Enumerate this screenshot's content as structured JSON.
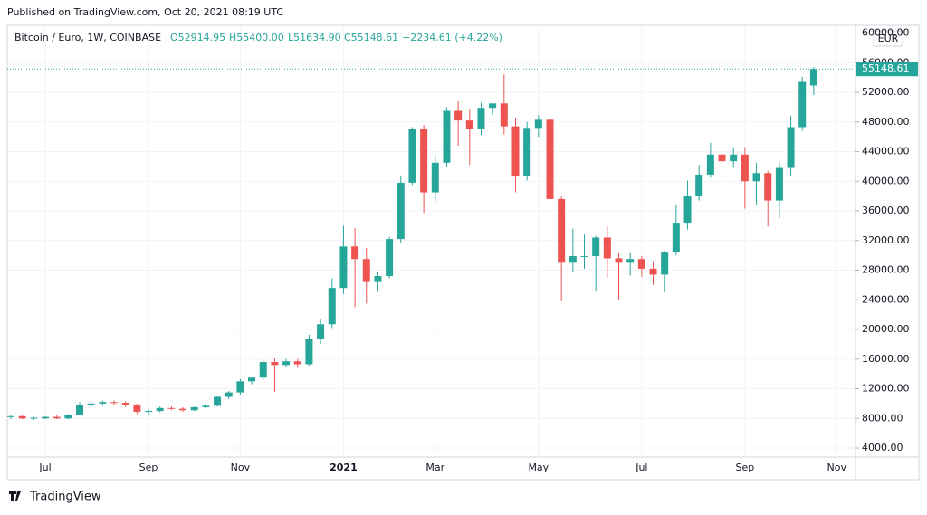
{
  "header": {
    "published": "Published on TradingView.com, Oct 20, 2021 08:19 UTC"
  },
  "chart_data": {
    "type": "candlestick",
    "legend": {
      "symbol": "Bitcoin / Euro, 1W, COINBASE",
      "open": "O52914.95",
      "high": "H55400.00",
      "low": "L51634.90",
      "close": "C55148.61",
      "change": "+2234.61 (+4.22%)"
    },
    "currency": "EUR",
    "up_color": "#26a69a",
    "down_color": "#ef5350",
    "grid": true,
    "categories": [
      null,
      null,
      null,
      "Jul",
      null,
      null,
      null,
      null,
      null,
      null,
      null,
      null,
      "Sep",
      null,
      null,
      null,
      null,
      null,
      null,
      null,
      "Nov",
      null,
      null,
      null,
      null,
      null,
      null,
      null,
      null,
      "2021",
      null,
      null,
      null,
      null,
      null,
      null,
      null,
      "Mar",
      null,
      null,
      null,
      null,
      null,
      null,
      null,
      null,
      "May",
      null,
      null,
      null,
      null,
      null,
      null,
      null,
      null,
      "Jul",
      null,
      null,
      null,
      null,
      null,
      null,
      null,
      null,
      "Sep",
      null,
      null,
      null,
      null,
      null,
      null,
      null,
      "Nov"
    ],
    "open": [
      8200,
      8300,
      8000,
      8000,
      8200,
      8000,
      8500,
      9800,
      10000,
      10200,
      10100,
      9800,
      8900,
      9000,
      9400,
      9300,
      9100,
      9500,
      9700,
      10900,
      11500,
      13000,
      13500,
      15600,
      15200,
      15700,
      15300,
      18700,
      20700,
      25600,
      31200,
      29500,
      26400,
      27200,
      32200,
      39800,
      47100,
      38500,
      42500,
      49500,
      48200,
      47000,
      49900,
      50500,
      47400,
      40700,
      47200,
      48300,
      37600,
      29000,
      29900,
      29900,
      32400,
      29600,
      29000,
      29500,
      28200,
      27400,
      30500,
      34400,
      38000,
      40900,
      43600,
      42700,
      43600,
      40000,
      41100,
      37400,
      41800,
      47300,
      52914.95,
      null,
      null
    ],
    "high": [
      8500,
      8500,
      8200,
      8300,
      8400,
      8600,
      10200,
      10300,
      10400,
      10400,
      10300,
      10000,
      9200,
      9600,
      9600,
      9500,
      9600,
      9900,
      11100,
      11700,
      13300,
      13600,
      15900,
      16200,
      16000,
      16000,
      19300,
      21400,
      26900,
      34000,
      33700,
      31000,
      27800,
      32500,
      40800,
      47300,
      47600,
      43500,
      50000,
      50800,
      49800,
      50600,
      50500,
      54400,
      48600,
      48000,
      48900,
      49200,
      38000,
      33600,
      32800,
      32600,
      33900,
      30300,
      30400,
      29900,
      29200,
      30600,
      36800,
      40100,
      42200,
      45200,
      45800,
      44600,
      44600,
      42500,
      41400,
      42500,
      48800,
      54100,
      55400,
      null,
      null
    ],
    "low": [
      7900,
      7900,
      7800,
      7900,
      7900,
      7900,
      8400,
      9500,
      9700,
      9800,
      9500,
      8600,
      8500,
      8800,
      9100,
      8900,
      9000,
      9400,
      9600,
      10600,
      11200,
      12600,
      13200,
      11600,
      14900,
      14800,
      15100,
      18000,
      20200,
      24800,
      23000,
      23500,
      25100,
      26900,
      31700,
      39500,
      35700,
      37300,
      42000,
      44800,
      42200,
      46200,
      49000,
      46300,
      38500,
      40100,
      46000,
      35700,
      23800,
      27700,
      28200,
      25200,
      27000,
      24000,
      27300,
      27100,
      26000,
      25000,
      30000,
      33500,
      37400,
      40500,
      40400,
      41800,
      36300,
      36800,
      33900,
      35000,
      40700,
      46800,
      51634.9,
      null,
      null
    ],
    "close": [
      8300,
      8000,
      8100,
      8200,
      8000,
      8500,
      9800,
      10000,
      10200,
      10100,
      9800,
      8900,
      9000,
      9400,
      9300,
      9100,
      9500,
      9700,
      10900,
      11500,
      13000,
      13500,
      15600,
      15200,
      15700,
      15300,
      18700,
      20700,
      25600,
      31200,
      29500,
      26400,
      27200,
      32200,
      39800,
      47100,
      38500,
      42500,
      49500,
      48200,
      47000,
      49900,
      50500,
      47400,
      40700,
      47200,
      48300,
      37600,
      29000,
      29900,
      29900,
      32400,
      29600,
      29000,
      29500,
      28200,
      27400,
      30500,
      34400,
      38000,
      40900,
      43600,
      42700,
      43600,
      40000,
      41100,
      37400,
      41800,
      47300,
      53400,
      55148.61,
      null,
      null
    ],
    "ylim": [
      2780,
      61040
    ],
    "yticks": [
      {
        "value": 4000,
        "label": "4000.00"
      },
      {
        "value": 8000,
        "label": "8000.00"
      },
      {
        "value": 12000,
        "label": "12000.00"
      },
      {
        "value": 16000,
        "label": "16000.00"
      },
      {
        "value": 20000,
        "label": "20000.00"
      },
      {
        "value": 24000,
        "label": "24000.00"
      },
      {
        "value": 28000,
        "label": "28000.00"
      },
      {
        "value": 32000,
        "label": "32000.00"
      },
      {
        "value": 36000,
        "label": "36000.00"
      },
      {
        "value": 40000,
        "label": "40000.00"
      },
      {
        "value": 44000,
        "label": "44000.00"
      },
      {
        "value": 48000,
        "label": "48000.00"
      },
      {
        "value": 52000,
        "label": "52000.00"
      },
      {
        "value": 56000,
        "label": "56000.00"
      },
      {
        "value": 60000,
        "label": "60000.00"
      }
    ]
  },
  "footer": {
    "brand": "TradingView"
  }
}
